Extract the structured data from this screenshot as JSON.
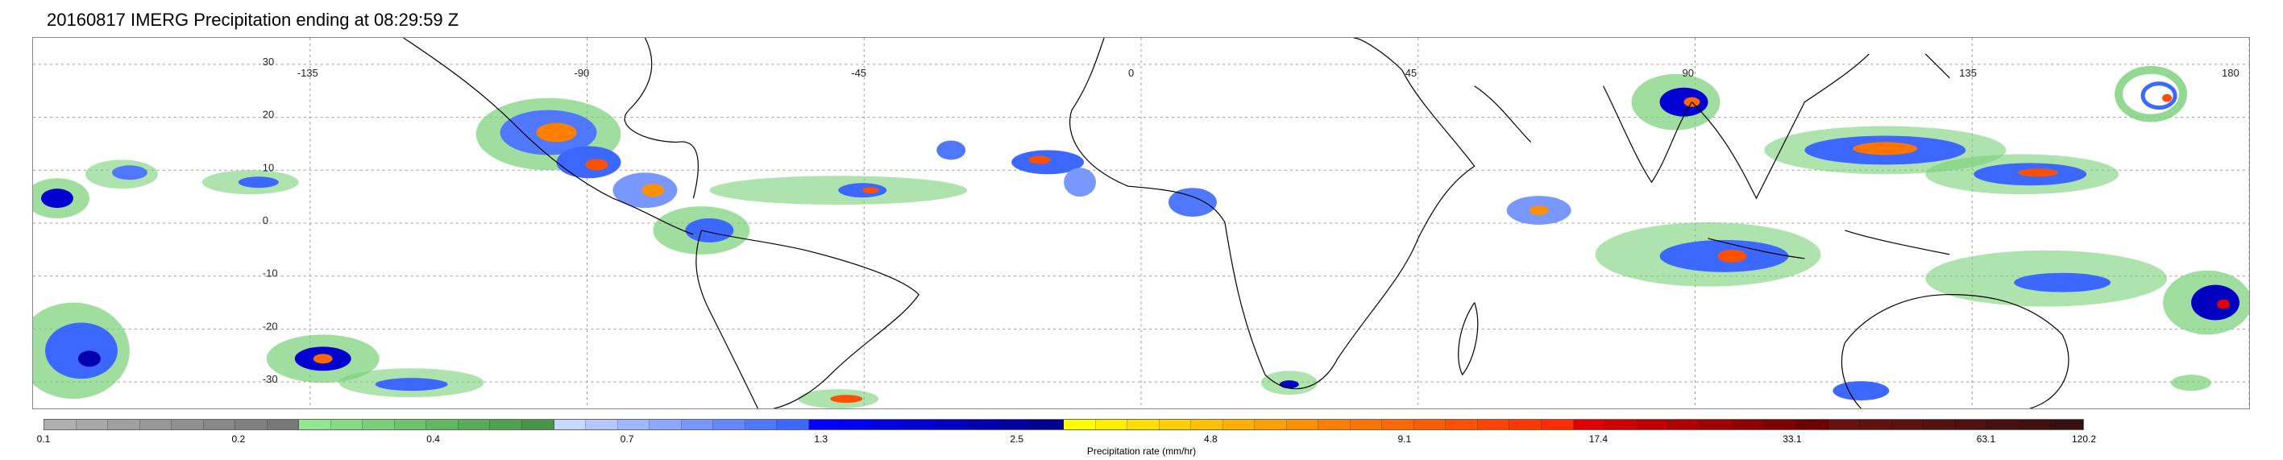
{
  "title": "20160817 IMERG Precipitation ending at 08:29:59 Z",
  "map": {
    "lat_ticks": [
      "30",
      "20",
      "10",
      "0",
      "-10",
      "-20",
      "-30"
    ],
    "lon_ticks": [
      "-135",
      "-90",
      "-45",
      "0",
      "45",
      "90",
      "135",
      "180"
    ],
    "gridlines": true
  },
  "colorbar": {
    "title": "Precipitation rate (mm/hr)",
    "tick_labels": [
      "0.1",
      "0.2",
      "0.4",
      "0.7",
      "1.3",
      "2.5",
      "4.8",
      "9.1",
      "17.4",
      "33.1",
      "63.1",
      "120.2"
    ],
    "colors": [
      "#b0b0b0",
      "#a8a8a8",
      "#a0a0a0",
      "#989898",
      "#909090",
      "#888888",
      "#808080",
      "#787878",
      "#90e890",
      "#84dc84",
      "#78d078",
      "#6cc46c",
      "#60b860",
      "#58ac58",
      "#50a050",
      "#489448",
      "#c8d8ff",
      "#b4c8ff",
      "#a0b8ff",
      "#8ca8ff",
      "#7898ff",
      "#6488ff",
      "#5078ff",
      "#3c68ff",
      "#0000ff",
      "#0000f0",
      "#0000e0",
      "#0000d0",
      "#0000c0",
      "#0000b0",
      "#0000a0",
      "#000090",
      "#ffff00",
      "#fff000",
      "#ffe000",
      "#ffd000",
      "#ffc000",
      "#ffb000",
      "#ffa000",
      "#ff9000",
      "#ff8000",
      "#ff7400",
      "#ff6800",
      "#ff5c00",
      "#ff5000",
      "#ff4400",
      "#ff3800",
      "#ff2c00",
      "#e00000",
      "#d00000",
      "#c00000",
      "#b00000",
      "#a00000",
      "#900000",
      "#800000",
      "#700000",
      "#6a1010",
      "#631010",
      "#5c1010",
      "#551010",
      "#4e1010",
      "#471010",
      "#401010",
      "#391010"
    ]
  }
}
